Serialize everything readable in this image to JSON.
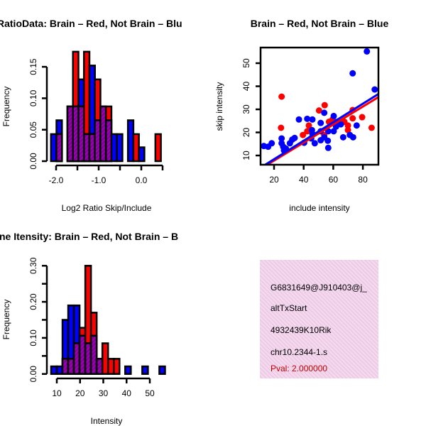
{
  "colors": {
    "red": "#ff0000",
    "blue": "#0000ff",
    "purple": "#9a00b8",
    "pval": "#c00000",
    "panel": "#f6d6f0"
  },
  "chart_data": [
    {
      "type": "bar",
      "title": "RatioData: Brain – Red, Not Brain – Blu",
      "xlabel": "Log2 Ratio Skip/Include",
      "ylabel": "Frequency",
      "xlim": [
        -2.0,
        0.5
      ],
      "ylim": [
        0,
        0.15
      ],
      "x_ticks": [
        -2.0,
        -1.5,
        -1.0,
        -0.5,
        0.0,
        0.5
      ],
      "x_tick_labels": [
        "-2.0",
        "",
        "-1.0",
        "",
        "0.0",
        ""
      ],
      "y_ticks": [
        0,
        0.05,
        0.1,
        0.15
      ],
      "y_tick_labels": [
        "0.00",
        "0.05",
        "0.10",
        "0.15"
      ],
      "bin_start": -2.12,
      "bin_width": 0.129,
      "series": [
        {
          "name": "Brain",
          "color": "red",
          "values": [
            0,
            0.043,
            0,
            0.087,
            0.174,
            0.087,
            0.174,
            0.043,
            0.13,
            0.087,
            0.087,
            0,
            0,
            0,
            0,
            0.043,
            0,
            0,
            0,
            0.043
          ]
        },
        {
          "name": "Not Brain",
          "color": "blue",
          "values": [
            0.043,
            0.065,
            0,
            0.087,
            0.087,
            0.13,
            0.043,
            0.152,
            0.065,
            0.087,
            0.065,
            0.043,
            0.043,
            0,
            0.065,
            0,
            0.022,
            0,
            0,
            0
          ]
        }
      ]
    },
    {
      "type": "scatter",
      "title": "Brain – Red, Not Brain – Blue",
      "xlabel": "include intensity",
      "ylabel": "skip intensity",
      "xlim": [
        10.9,
        90.5
      ],
      "ylim": [
        6,
        56.8
      ],
      "x_ticks": [
        20,
        40,
        60,
        80
      ],
      "x_tick_labels": [
        "20",
        "40",
        "60",
        "80"
      ],
      "y_ticks": [
        10,
        20,
        30,
        40,
        50
      ],
      "y_tick_labels": [
        "10",
        "20",
        "30",
        "40",
        "50"
      ],
      "series": [
        {
          "name": "Not Brain",
          "color": "blue",
          "x": [
            13.1,
            16.0,
            18.4,
            25.1,
            25.1,
            26.2,
            26.7,
            28.0,
            30.7,
            32.3,
            33.9,
            40.3,
            36.8,
            42.4,
            45.9,
            45.6,
            45.9,
            47.5,
            51.5,
            53.9,
            51.5,
            53.9,
            56.6,
            56.6,
            56.3,
            60.3,
            60.3,
            61.9,
            62.7,
            65.1,
            66.7,
            71.2,
            73.4,
            73.1,
            75.8,
            82.7,
            88.0,
            51.5,
            45.1
          ],
          "y": [
            14.1,
            13.8,
            15.3,
            17.4,
            15.3,
            13.8,
            12.2,
            13.0,
            15.3,
            16.9,
            17.6,
            15.5,
            25.6,
            25.9,
            25.6,
            21.0,
            19.4,
            15.3,
            24.1,
            28.5,
            16.6,
            17.9,
            20.5,
            13.3,
            16.4,
            27.1,
            20.5,
            22.5,
            24.6,
            23.5,
            17.9,
            18.9,
            17.9,
            45.6,
            23.0,
            55.1,
            38.6,
            20.5,
            17.4
          ],
          "fit": {
            "intercept": 0.35,
            "slope": 0.401
          }
        },
        {
          "name": "Brain",
          "color": "red",
          "x": [
            25.1,
            24.7,
            39.5,
            42.4,
            43.5,
            50.4,
            54.2,
            53.9,
            57.1,
            59.5,
            67.5,
            69.9,
            69.9,
            73.1,
            73.1,
            79.5,
            85.9
          ],
          "y": [
            35.5,
            22.0,
            18.9,
            20.5,
            23.0,
            29.5,
            31.8,
            18.9,
            24.6,
            25.6,
            24.6,
            23.0,
            21.0,
            29.7,
            26.1,
            26.6,
            22.0
          ],
          "fit": {
            "intercept": 0.0,
            "slope": 0.39
          }
        }
      ]
    },
    {
      "type": "bar",
      "title": "ne Itensity: Brain – Red, Not Brain – B",
      "xlabel": "Intensity",
      "ylabel": "Frequency",
      "xlim": [
        10,
        50
      ],
      "ylim": [
        0,
        0.3
      ],
      "x_ticks": [
        10,
        20,
        30,
        40,
        50
      ],
      "x_tick_labels": [
        "10",
        "20",
        "30",
        "40",
        "50"
      ],
      "y_ticks": [
        0,
        0.05,
        0.1,
        0.15,
        0.2,
        0.25,
        0.3
      ],
      "y_tick_labels": [
        "0.00",
        "",
        "0.10",
        "",
        "0.20",
        "",
        "0.30"
      ],
      "bin_start": 7.55,
      "bin_width": 2.45,
      "series": [
        {
          "name": "Brain",
          "color": "red",
          "values": [
            0,
            0,
            0.042,
            0.042,
            0.085,
            0.128,
            0.3,
            0.17,
            0.042,
            0.085,
            0.042,
            0.042,
            0,
            0,
            0,
            0,
            0,
            0,
            0,
            0
          ]
        },
        {
          "name": "Not Brain",
          "color": "blue",
          "values": [
            0.021,
            0.021,
            0.15,
            0.19,
            0.19,
            0.106,
            0.085,
            0.106,
            0.042,
            0,
            0,
            0,
            0,
            0.021,
            0,
            0,
            0.021,
            0,
            0,
            0.021
          ]
        }
      ]
    }
  ],
  "info_panel": {
    "lines": [
      "G6831649@J910403@j_",
      "altTxStart",
      "4932439K10Rik",
      "chr10.2344-1.s"
    ],
    "pval": "Pval: 2.000000"
  }
}
